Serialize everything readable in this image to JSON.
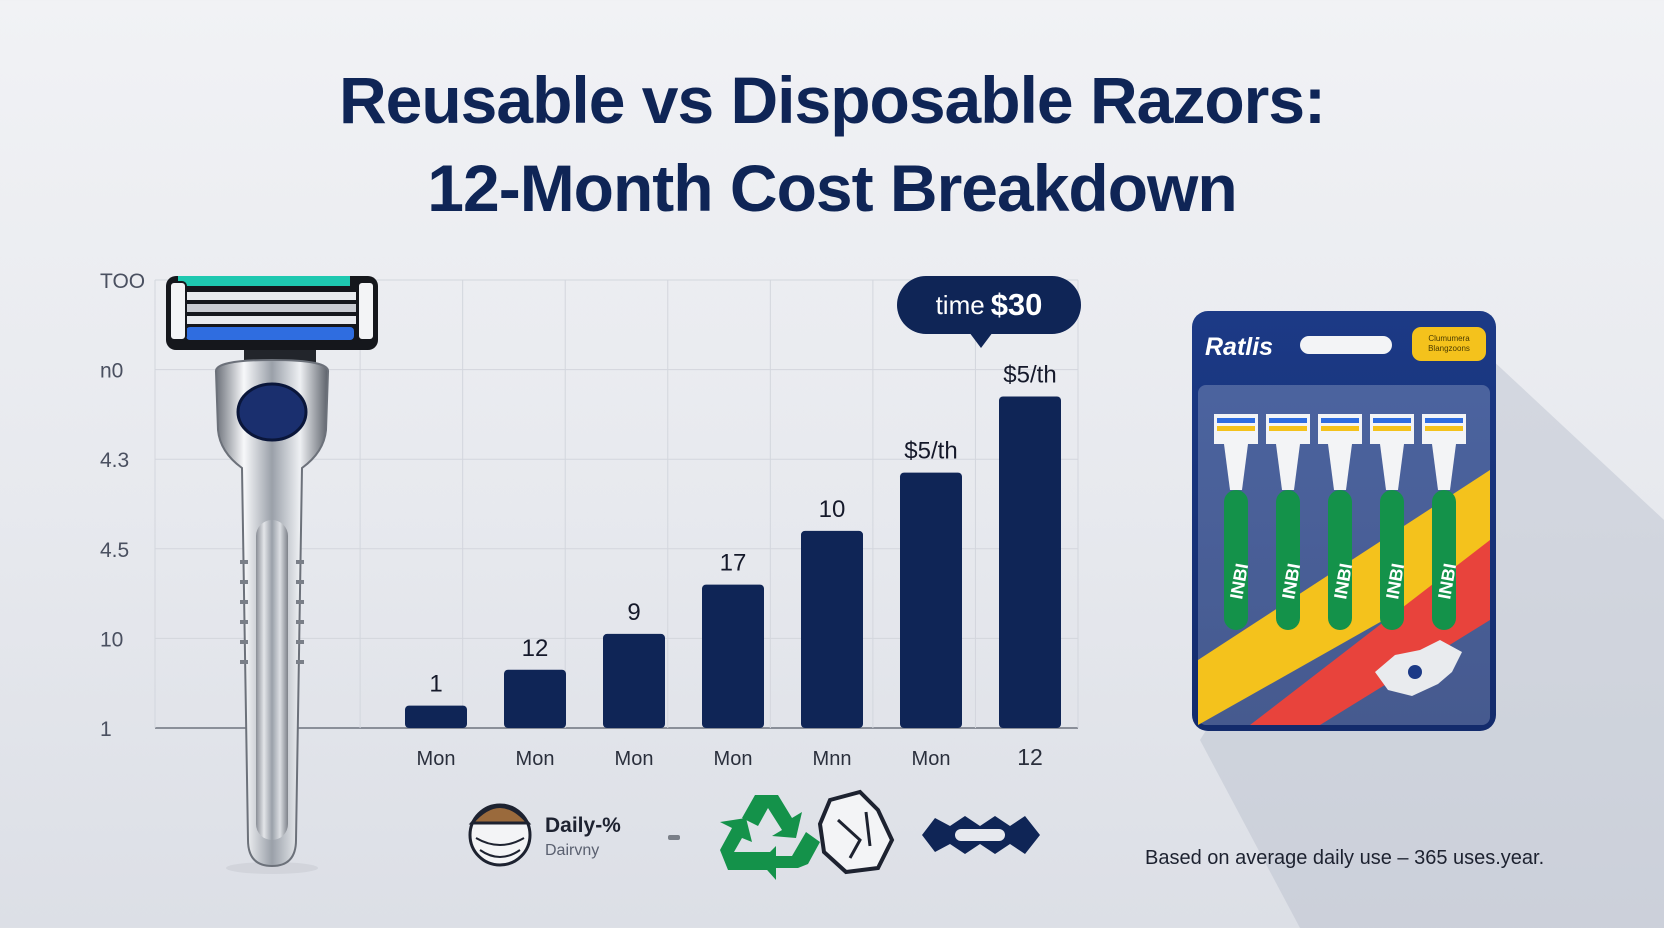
{
  "title_line1": "Reusable vs Disposable Razors:",
  "title_line2": "12-Month Cost Breakdown",
  "callout": {
    "prefix": "time",
    "amount": "$30"
  },
  "footnote": "Based on average daily use – 365 uses.year.",
  "legend": {
    "label": "Daily-%",
    "sub": "Dairvny",
    "separator": "-"
  },
  "pack": {
    "brand": "Ratlis",
    "badge_line1": "Clumumera",
    "badge_line2": "Blangzoons",
    "razor_text": "INBI"
  },
  "icons": [
    "reusable-razor-icon",
    "face-shaving-icon",
    "recycle-icon",
    "plastic-waste-icon",
    "blade-icon",
    "disposable-razor-pack-icon"
  ],
  "colors": {
    "navy": "#0f2556",
    "accent_teal": "#1ec8b0",
    "accent_blue": "#2f6de0",
    "green": "#14924a",
    "yellow": "#f4c21c",
    "red": "#e8433c"
  },
  "chart_data": {
    "type": "bar",
    "title": "Reusable vs Disposable Razors: 12-Month Cost Breakdown",
    "y_tick_labels": [
      "TOO",
      "n0",
      "4.3",
      "4.5",
      "10",
      "1"
    ],
    "categories": [
      "Mon",
      "Mon",
      "Mon",
      "Mon",
      "Mnn",
      "Mon",
      "12"
    ],
    "values": [
      5,
      13,
      21,
      32,
      44,
      57,
      74
    ],
    "data_labels": [
      "1",
      "12",
      "9",
      "17",
      "10",
      "$5/th",
      "$5/th"
    ],
    "ylim": [
      0,
      100
    ],
    "grid": true,
    "color": "#0f2556"
  }
}
